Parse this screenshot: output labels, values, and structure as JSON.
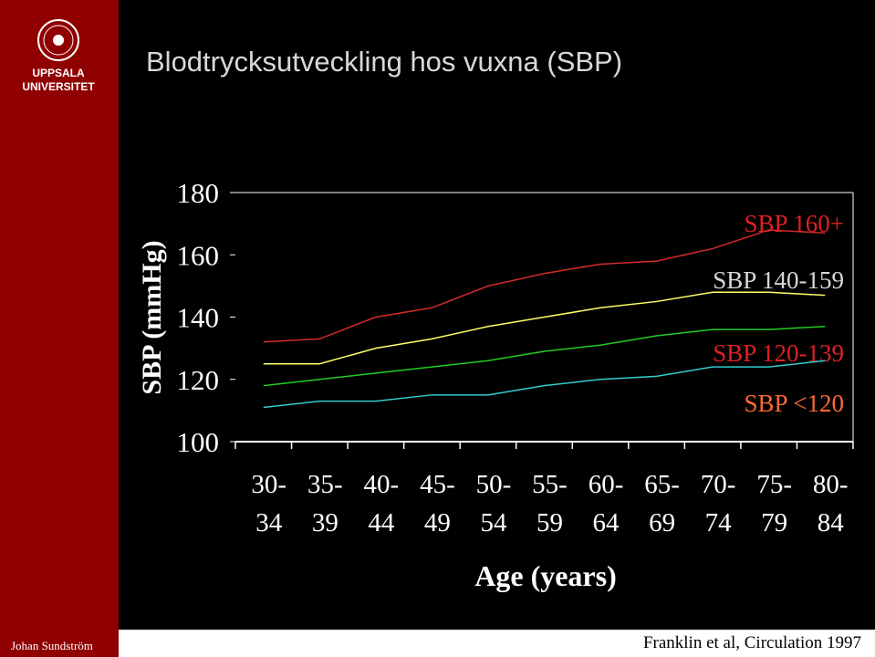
{
  "sidebar": {
    "logo_line1": "UPPSALA",
    "logo_line2": "UNIVERSITET",
    "author": "Johan Sundström"
  },
  "footer": {
    "source": "Franklin et al, Circulation 1997"
  },
  "chart_data": {
    "type": "line",
    "title": "Blodtrycksutveckling hos vuxna (SBP)",
    "x_label": "Age (years)",
    "y_label": "SBP (mmHg)",
    "categories": [
      "30-34",
      "35-39",
      "40-44",
      "45-49",
      "50-54",
      "55-59",
      "60-64",
      "65-69",
      "70-74",
      "75-79",
      "80-84"
    ],
    "ylim": [
      100,
      180
    ],
    "yticks": [
      100,
      120,
      140,
      160,
      180
    ],
    "grid": false,
    "series": [
      {
        "name": "SBP 160+",
        "color": "#d42a2a",
        "label_color": "#e02020",
        "values": [
          132,
          133,
          140,
          143,
          150,
          154,
          157,
          158,
          162,
          168,
          167
        ]
      },
      {
        "name": "SBP 140-159",
        "color": "#ffff66",
        "label_color": "#d8d8d8",
        "values": [
          125,
          125,
          130,
          133,
          137,
          140,
          143,
          145,
          148,
          148,
          147
        ]
      },
      {
        "name": "SBP 120-139",
        "color": "#22cc22",
        "label_color": "#e02020",
        "values": [
          118,
          120,
          122,
          124,
          126,
          129,
          131,
          134,
          136,
          136,
          137
        ]
      },
      {
        "name": "SBP <120",
        "color": "#33cccc",
        "label_color": "#ff6a33",
        "values": [
          111,
          113,
          113,
          115,
          115,
          118,
          120,
          121,
          124,
          124,
          126
        ]
      }
    ]
  }
}
